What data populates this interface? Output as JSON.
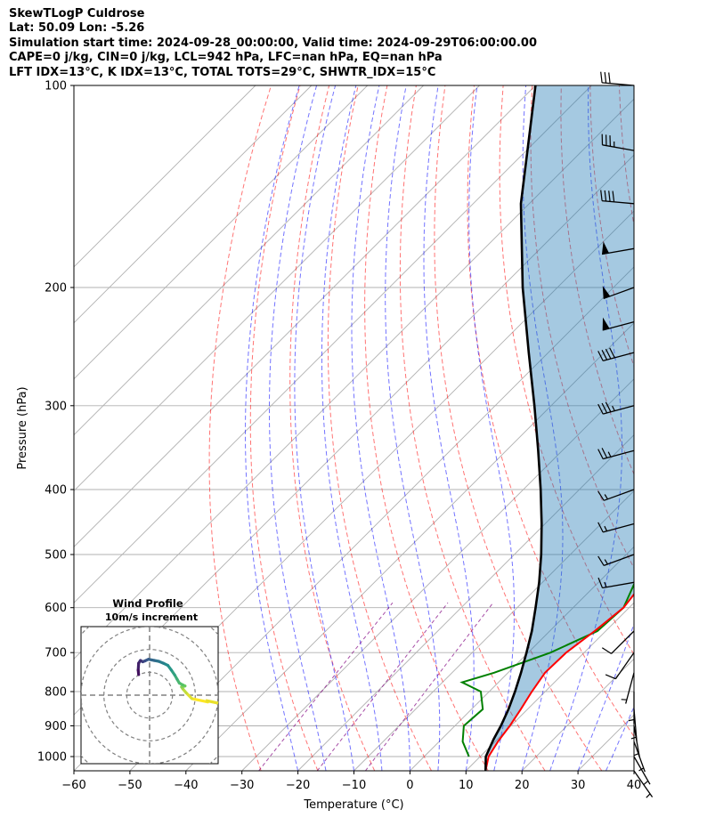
{
  "header": {
    "lines": [
      "SkewTLogP Culdrose",
      "Lat: 50.09   Lon: -5.26",
      "Simulation start time: 2024-09-28_00:00:00, Valid time: 2024-09-29T06:00:00.00",
      "CAPE=0 j/kg, CIN=0 j/kg, LCL=942 hPa, LFC=nan hPa, EQ=nan hPa",
      "LFT IDX=13°C, K IDX=13°C, TOTAL TOTS=29°C, SHWTR_IDX=15°C"
    ]
  },
  "chart_data": [
    {
      "type": "line",
      "chart_kind": "skew-T log-P",
      "xlabel": "Temperature (°C)",
      "ylabel": "Pressure (hPa)",
      "xlim": [
        -60,
        40
      ],
      "ylim": [
        1050,
        100
      ],
      "y_scale": "log",
      "grid": true,
      "x_ticks": [
        -60,
        -50,
        -40,
        -30,
        -20,
        -10,
        0,
        10,
        20,
        30,
        40
      ],
      "y_ticks": [
        100,
        200,
        300,
        400,
        500,
        600,
        700,
        800,
        900,
        1000
      ],
      "temperature": {
        "color": "#ff0000",
        "points": [
          [
            1050,
            13.5
          ],
          [
            1000,
            11.5
          ],
          [
            950,
            10.5
          ],
          [
            900,
            9.8
          ],
          [
            850,
            8.8
          ],
          [
            800,
            7.6
          ],
          [
            750,
            6.6
          ],
          [
            700,
            6.8
          ],
          [
            650,
            8.0
          ],
          [
            600,
            9.0
          ],
          [
            550,
            8.0
          ],
          [
            500,
            6.0
          ],
          [
            450,
            2.8
          ],
          [
            400,
            -2.5
          ],
          [
            350,
            -8.5
          ],
          [
            300,
            -15.0
          ],
          [
            250,
            -23.0
          ],
          [
            220,
            -28.0
          ],
          [
            200,
            -33.0
          ],
          [
            180,
            -38.0
          ],
          [
            160,
            -44.0
          ],
          [
            145,
            -48.5
          ],
          [
            130,
            -52.5
          ],
          [
            120,
            -55.0
          ],
          [
            110,
            -59.0
          ],
          [
            100,
            -63.5
          ]
        ]
      },
      "dewpoint": {
        "color": "#008000",
        "points": [
          [
            1000,
            8.0
          ],
          [
            950,
            4.2
          ],
          [
            900,
            1.6
          ],
          [
            850,
            2.0
          ],
          [
            800,
            -1.5
          ],
          [
            775,
            -6.5
          ],
          [
            750,
            -2.5
          ],
          [
            700,
            4.0
          ],
          [
            650,
            8.5
          ],
          [
            600,
            9.0
          ],
          [
            550,
            6.5
          ],
          [
            500,
            3.0
          ],
          [
            450,
            -1.0
          ],
          [
            400,
            -6.0
          ],
          [
            350,
            -14.0
          ],
          [
            300,
            -20.0
          ],
          [
            250,
            -28.0
          ],
          [
            220,
            -35.0
          ],
          [
            200,
            -40.0
          ],
          [
            180,
            -44.5
          ],
          [
            160,
            -49.0
          ],
          [
            140,
            -57.0
          ],
          [
            125,
            -64.5
          ],
          [
            115,
            -68.0
          ],
          [
            105,
            -70.5
          ],
          [
            100,
            -71.5
          ]
        ]
      },
      "parcel": {
        "color": "#000000",
        "points": [
          [
            1050,
            13.5
          ],
          [
            1000,
            11.0
          ],
          [
            942,
            9.3
          ],
          [
            900,
            8.2
          ],
          [
            850,
            6.6
          ],
          [
            800,
            4.6
          ],
          [
            750,
            2.3
          ],
          [
            700,
            -0.3
          ],
          [
            650,
            -3.2
          ],
          [
            600,
            -6.7
          ],
          [
            550,
            -10.6
          ],
          [
            500,
            -15.2
          ],
          [
            450,
            -20.6
          ],
          [
            400,
            -26.9
          ],
          [
            350,
            -34.3
          ],
          [
            300,
            -43.0
          ],
          [
            250,
            -53.5
          ],
          [
            200,
            -66.2
          ],
          [
            150,
            -81.5
          ],
          [
            100,
            -100.0
          ]
        ]
      },
      "cape_cin_shading": {
        "color": "#1f77b4",
        "opacity": 0.4
      },
      "dry_adiabats": {
        "color": "#ff0000",
        "style": "dashed"
      },
      "moist_adiabats": {
        "color": "#0000ff",
        "style": "dashed"
      },
      "mixing_ratio_lines": {
        "color": "#800080",
        "style": "dashed"
      },
      "isotherm_grid_color": "#b0b0b0",
      "wind_barbs": [
        {
          "p": 100,
          "dir": 275,
          "speed": 30
        },
        {
          "p": 125,
          "dir": 280,
          "speed": 35
        },
        {
          "p": 150,
          "dir": 275,
          "speed": 40
        },
        {
          "p": 175,
          "dir": 260,
          "speed": 50
        },
        {
          "p": 200,
          "dir": 250,
          "speed": 50
        },
        {
          "p": 225,
          "dir": 255,
          "speed": 50
        },
        {
          "p": 250,
          "dir": 255,
          "speed": 40
        },
        {
          "p": 300,
          "dir": 255,
          "speed": 35
        },
        {
          "p": 350,
          "dir": 255,
          "speed": 25
        },
        {
          "p": 400,
          "dir": 250,
          "speed": 15
        },
        {
          "p": 450,
          "dir": 255,
          "speed": 15
        },
        {
          "p": 500,
          "dir": 250,
          "speed": 15
        },
        {
          "p": 550,
          "dir": 260,
          "speed": 15
        },
        {
          "p": 650,
          "dir": 225,
          "speed": 10
        },
        {
          "p": 700,
          "dir": 215,
          "speed": 10
        },
        {
          "p": 750,
          "dir": 195,
          "speed": 5
        },
        {
          "p": 800,
          "dir": 180,
          "speed": 5
        },
        {
          "p": 850,
          "dir": 175,
          "speed": 5
        },
        {
          "p": 900,
          "dir": 170,
          "speed": 5
        },
        {
          "p": 950,
          "dir": 160,
          "speed": 5
        },
        {
          "p": 1000,
          "dir": 150,
          "speed": 5
        },
        {
          "p": 1050,
          "dir": 145,
          "speed": 5
        }
      ]
    },
    {
      "type": "scatter",
      "chart_kind": "hodograph",
      "title": "Wind Profile",
      "subtitle": "10m/s increment",
      "ring_radii_ms": [
        10,
        20,
        30,
        40
      ],
      "range_ms": [
        -30,
        30
      ],
      "colormap": "viridis",
      "trace": [
        [
          25.5,
          -3.0
        ],
        [
          18.5,
          -1.5
        ],
        [
          16.0,
          1.0
        ],
        [
          14.5,
          2.8
        ],
        [
          14.0,
          3.6
        ],
        [
          15.5,
          4.0
        ],
        [
          14.5,
          4.5
        ],
        [
          13.0,
          5.3
        ],
        [
          12.0,
          7.0
        ],
        [
          11.0,
          8.8
        ],
        [
          9.5,
          11.0
        ],
        [
          8.0,
          13.0
        ],
        [
          6.0,
          14.0
        ],
        [
          4.0,
          14.8
        ],
        [
          2.0,
          15.2
        ],
        [
          -0.5,
          15.7
        ],
        [
          -2.0,
          15.0
        ],
        [
          -3.0,
          14.6
        ],
        [
          -4.0,
          15.2
        ],
        [
          -4.8,
          14.0
        ],
        [
          -5.0,
          11.0
        ],
        [
          -4.8,
          9.0
        ]
      ]
    }
  ]
}
